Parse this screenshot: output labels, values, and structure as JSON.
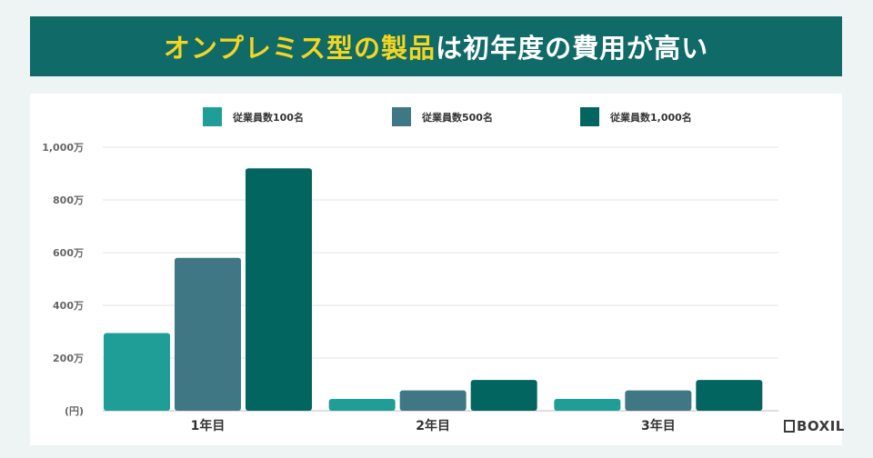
{
  "header": {
    "title_highlight": "オンプレミス型の製品",
    "title_rest": "は初年度の費用が高い"
  },
  "colors": {
    "banner": "#106a68",
    "highlight": "#f4d51f",
    "series": [
      "#1f9e98",
      "#3f7884",
      "#03655f"
    ]
  },
  "brand": {
    "name": "BOXIL"
  },
  "chart_data": {
    "type": "bar",
    "categories": [
      "1年目",
      "2年目",
      "3年目"
    ],
    "series": [
      {
        "name": "従業員数100名",
        "values": [
          295,
          45,
          45
        ]
      },
      {
        "name": "従業員数500名",
        "values": [
          580,
          77,
          77
        ]
      },
      {
        "name": "従業員数1,000名",
        "values": [
          920,
          117,
          117
        ]
      }
    ],
    "ylim": [
      0,
      1000
    ],
    "yticks": [
      {
        "value": 0,
        "label": "(円)"
      },
      {
        "value": 200,
        "label": "200万"
      },
      {
        "value": 400,
        "label": "400万"
      },
      {
        "value": 600,
        "label": "600万"
      },
      {
        "value": 800,
        "label": "800万"
      },
      {
        "value": 1000,
        "label": "1,000万"
      }
    ],
    "grid": true,
    "legend": "top"
  }
}
